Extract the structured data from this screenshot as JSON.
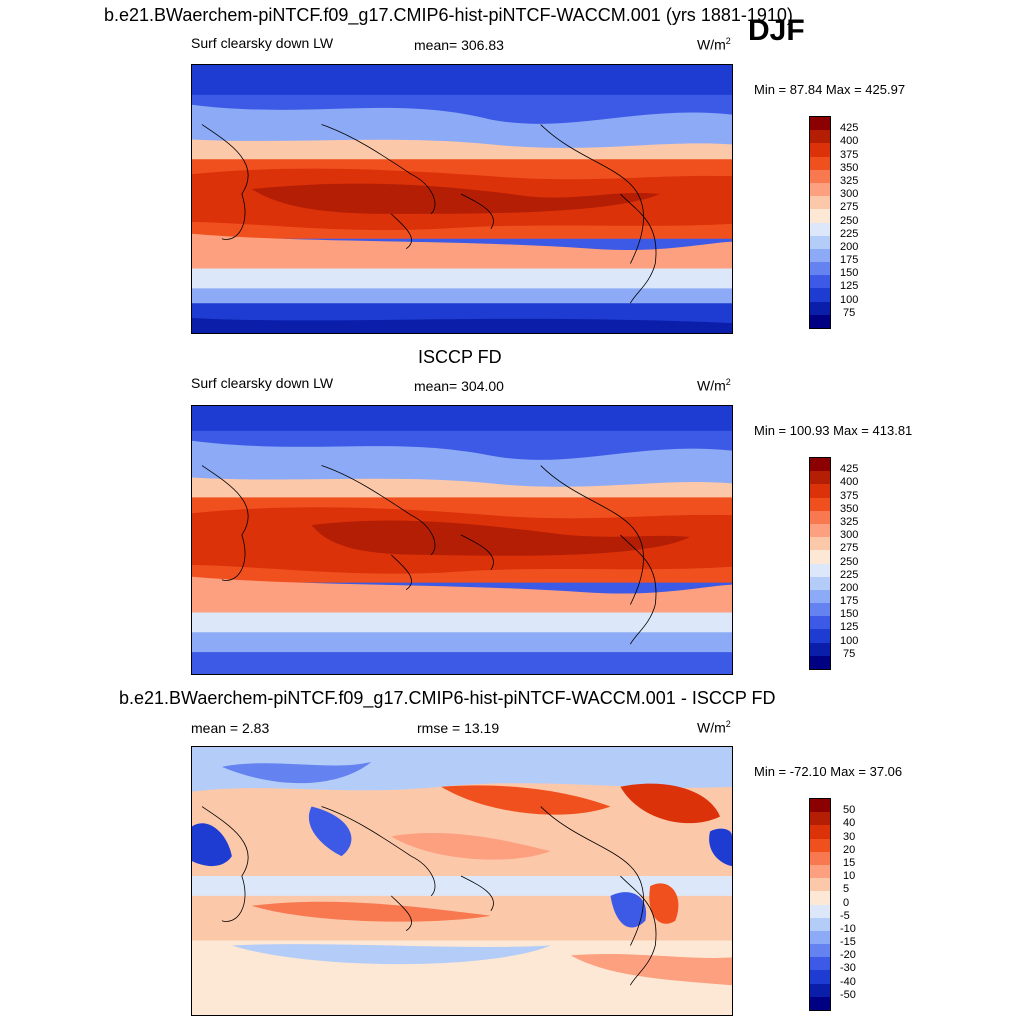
{
  "header": {
    "title": "b.e21.BWaerchem-piNTCF.f09_g17.CMIP6-hist-piNTCF-WACCM.001 (yrs 1881-1910)",
    "season": "DJF"
  },
  "panels": [
    {
      "title": "",
      "variable": "Surf clearsky down LW",
      "stat_left": "",
      "stat_center": "mean= 306.83",
      "units": "W/m",
      "units_sup": "2",
      "minmax": "Min =  87.84 Max = 425.97",
      "colorbar_labels": [
        "425",
        "400",
        "375",
        "350",
        "325",
        "300",
        "275",
        "250",
        "225",
        "200",
        "175",
        "150",
        "125",
        "100",
        "75"
      ],
      "colorbar_colors": [
        "#8b0000",
        "#b41e05",
        "#dc320a",
        "#f0501e",
        "#f87850",
        "#fca080",
        "#fcc8aa",
        "#fde8d6",
        "#dce8fa",
        "#b4cdf8",
        "#8caaf5",
        "#6482f0",
        "#3c5ae6",
        "#1e3cd2",
        "#0a1eaa",
        "#000082"
      ]
    },
    {
      "title": "ISCCP FD",
      "variable": "Surf clearsky down LW",
      "stat_left": "",
      "stat_center": "mean= 304.00",
      "units": "W/m",
      "units_sup": "2",
      "minmax": "Min = 100.93 Max = 413.81",
      "colorbar_labels": [
        "425",
        "400",
        "375",
        "350",
        "325",
        "300",
        "275",
        "250",
        "225",
        "200",
        "175",
        "150",
        "125",
        "100",
        "75"
      ],
      "colorbar_colors": [
        "#8b0000",
        "#b41e05",
        "#dc320a",
        "#f0501e",
        "#f87850",
        "#fca080",
        "#fcc8aa",
        "#fde8d6",
        "#dce8fa",
        "#b4cdf8",
        "#8caaf5",
        "#6482f0",
        "#3c5ae6",
        "#1e3cd2",
        "#0a1eaa",
        "#000082"
      ]
    },
    {
      "title": "b.e21.BWaerchem-piNTCF.f09_g17.CMIP6-hist-piNTCF-WACCM.001 - ISCCP FD",
      "variable": "",
      "stat_left": "mean =   2.83",
      "stat_center": "rmse =  13.19",
      "units": "W/m",
      "units_sup": "2",
      "minmax": "Min = -72.10 Max =  37.06",
      "colorbar_labels": [
        "50",
        "40",
        "30",
        "20",
        "15",
        "10",
        "5",
        "0",
        "-5",
        "-10",
        "-15",
        "-20",
        "-30",
        "-40",
        "-50"
      ],
      "colorbar_colors": [
        "#8b0000",
        "#b41e05",
        "#dc320a",
        "#f0501e",
        "#f87850",
        "#fca080",
        "#fcc8aa",
        "#fde8d6",
        "#dce8fa",
        "#b4cdf8",
        "#8caaf5",
        "#6482f0",
        "#3c5ae6",
        "#1e3cd2",
        "#0a1eaa",
        "#000082"
      ]
    }
  ]
}
